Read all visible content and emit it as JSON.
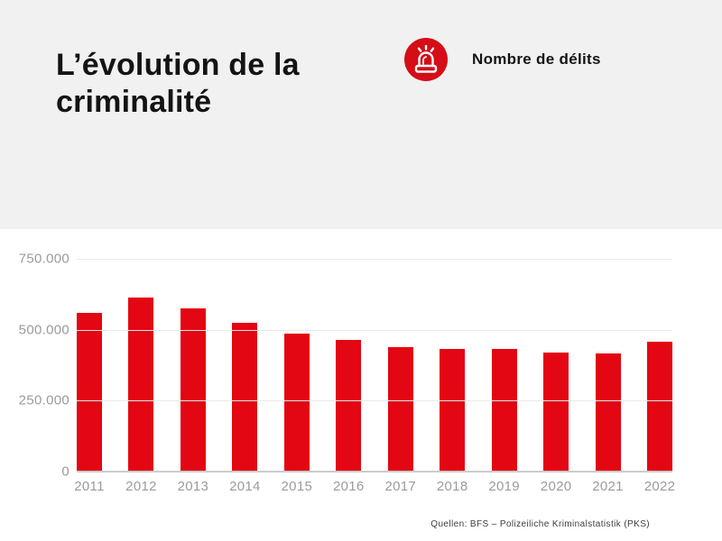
{
  "header": {
    "title": "L’évolution de la criminalité",
    "background": "#f1f1f1",
    "legend": {
      "icon": "siren-icon",
      "icon_bg": "#d40d17",
      "icon_fg": "#ffffff",
      "label": "Nombre de délits"
    }
  },
  "chart_data": {
    "type": "bar",
    "title": "L’évolution de la criminalité",
    "legend_entries": [
      "Nombre de délits"
    ],
    "categories": [
      "2011",
      "2012",
      "2013",
      "2014",
      "2015",
      "2016",
      "2017",
      "2018",
      "2019",
      "2020",
      "2021",
      "2022"
    ],
    "values": [
      560000,
      615000,
      576000,
      525000,
      487000,
      465000,
      438000,
      433000,
      431000,
      420000,
      415000,
      457000
    ],
    "bar_color": "#e30613",
    "ylim": [
      0,
      750000
    ],
    "yticks": [
      {
        "value": 750000,
        "label": "750.000"
      },
      {
        "value": 500000,
        "label": "500.000"
      },
      {
        "value": 250000,
        "label": "250.000"
      },
      {
        "value": 0,
        "label": "0"
      }
    ],
    "grid": true,
    "xlabel": "",
    "ylabel": ""
  },
  "footer": {
    "source": "Quellen: BFS – Polizeiliche Kriminalstatistik (PKS)"
  }
}
